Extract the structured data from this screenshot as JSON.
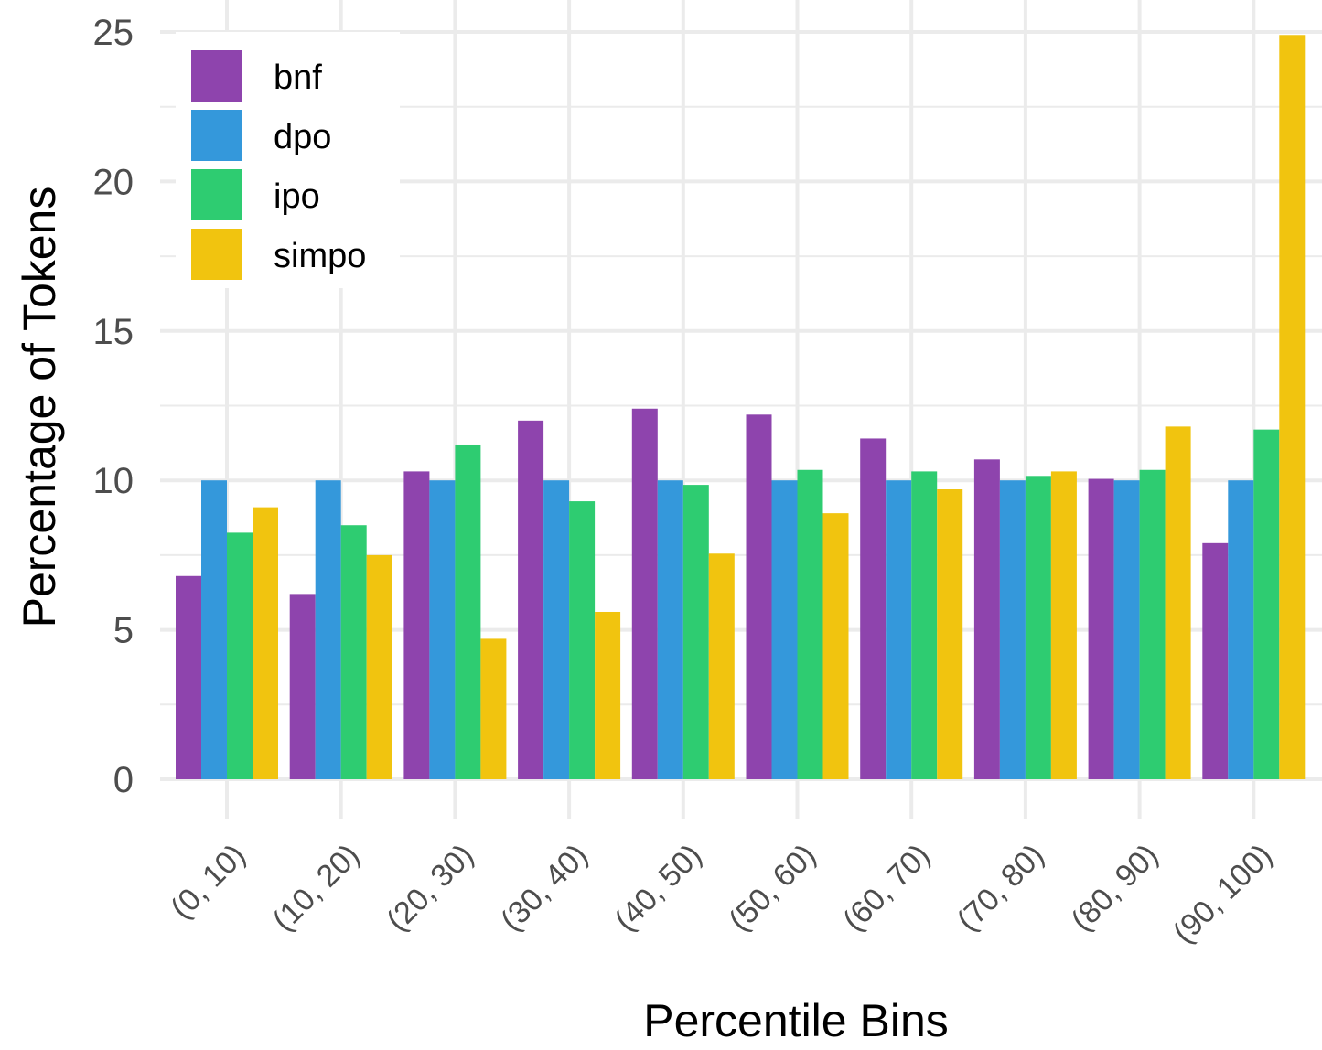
{
  "chart_data": {
    "type": "bar",
    "title": "",
    "xlabel": "Percentile Bins",
    "ylabel": "Percentage of Tokens",
    "ylim": [
      0,
      25
    ],
    "yticks": [
      0,
      5,
      10,
      15,
      20,
      25
    ],
    "grid": true,
    "legend_position": "top-left",
    "categories": [
      "(0, 10)",
      "(10, 20)",
      "(20, 30)",
      "(30, 40)",
      "(40, 50)",
      "(50, 60)",
      "(60, 70)",
      "(70, 80)",
      "(80, 90)",
      "(90, 100)"
    ],
    "series": [
      {
        "name": "bnf",
        "color": "#8e44ad",
        "values": [
          6.8,
          6.2,
          10.3,
          12.0,
          12.4,
          12.2,
          11.4,
          10.7,
          10.05,
          7.9
        ]
      },
      {
        "name": "dpo",
        "color": "#3498db",
        "values": [
          10.0,
          10.0,
          10.0,
          10.0,
          10.0,
          10.0,
          10.0,
          10.0,
          10.0,
          10.0
        ]
      },
      {
        "name": "ipo",
        "color": "#2ecc71",
        "values": [
          8.25,
          8.5,
          11.2,
          9.3,
          9.85,
          10.35,
          10.3,
          10.15,
          10.35,
          11.7
        ]
      },
      {
        "name": "simpo",
        "color": "#f1c40f",
        "values": [
          9.1,
          7.5,
          4.7,
          5.6,
          7.55,
          8.9,
          9.7,
          10.3,
          11.8,
          24.9
        ]
      }
    ]
  }
}
